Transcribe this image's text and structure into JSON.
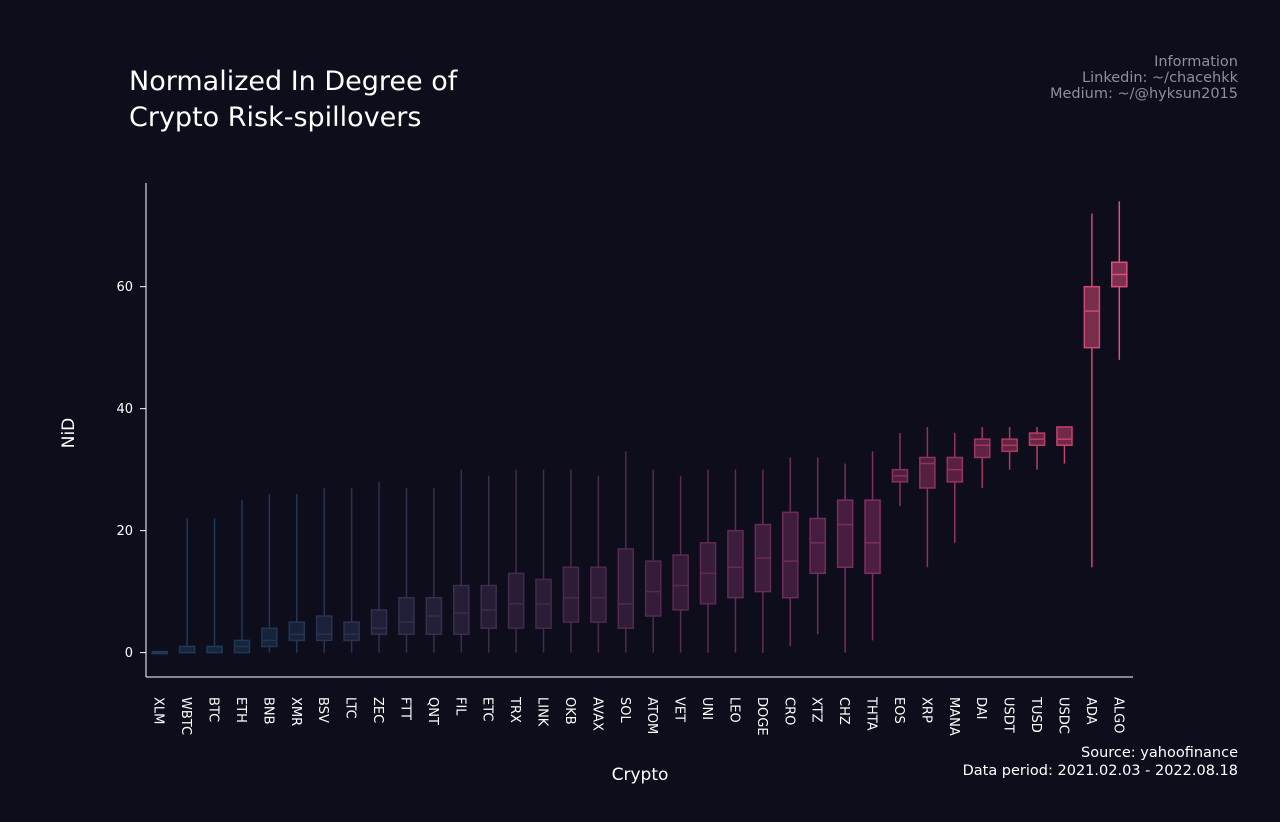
{
  "title_line1": "Normalized In Degree of",
  "title_line2": "Crypto Risk-spillovers",
  "info": {
    "heading": "Information",
    "linkedin": "Linkedin: ~/chacehkk",
    "medium": "Medium: ~/@hyksun2015"
  },
  "source": {
    "line1": "Source: yahoofinance",
    "line2": "Data period: 2021.02.03 - 2022.08.18"
  },
  "chart_data": {
    "type": "box",
    "xlabel": "Crypto",
    "ylabel": "NiD",
    "ylim": [
      -4,
      77
    ],
    "yticks": [
      0,
      20,
      40,
      60
    ],
    "legend": "none",
    "categories": [
      "XLM",
      "WBTC",
      "BTC",
      "ETH",
      "BNB",
      "XMR",
      "BSV",
      "LTC",
      "ZEC",
      "FTT",
      "QNT",
      "FIL",
      "ETC",
      "TRX",
      "LINK",
      "OKB",
      "AVAX",
      "SOL",
      "ATOM",
      "VET",
      "UNI",
      "LEO",
      "DOGE",
      "CRO",
      "XTZ",
      "CHZ",
      "THTA",
      "EOS",
      "XRP",
      "MANA",
      "DAI",
      "USDT",
      "TUSD",
      "USDC",
      "ADA",
      "ALGO"
    ],
    "boxes": [
      {
        "name": "XLM",
        "min": 0,
        "q1": 0,
        "median": 0,
        "q3": 0,
        "max": 0,
        "color": "#1d3a55"
      },
      {
        "name": "WBTC",
        "min": 0,
        "q1": 0,
        "median": 1,
        "q3": 1,
        "max": 22,
        "color": "#1d3a55"
      },
      {
        "name": "BTC",
        "min": 0,
        "q1": 0,
        "median": 1,
        "q3": 1,
        "max": 22,
        "color": "#1d3a55"
      },
      {
        "name": "ETH",
        "min": 0,
        "q1": 0,
        "median": 1,
        "q3": 2,
        "max": 25,
        "color": "#1e3853"
      },
      {
        "name": "BNB",
        "min": 0,
        "q1": 1,
        "median": 2,
        "q3": 4,
        "max": 26,
        "color": "#213652"
      },
      {
        "name": "XMR",
        "min": 0,
        "q1": 2,
        "median": 3,
        "q3": 5,
        "max": 26,
        "color": "#253552"
      },
      {
        "name": "BSV",
        "min": 0,
        "q1": 2,
        "median": 3,
        "q3": 6,
        "max": 27,
        "color": "#283351"
      },
      {
        "name": "LTC",
        "min": 0,
        "q1": 2,
        "median": 3,
        "q3": 5,
        "max": 27,
        "color": "#2c3250"
      },
      {
        "name": "ZEC",
        "min": 0,
        "q1": 3,
        "median": 4,
        "q3": 7,
        "max": 28,
        "color": "#2f314f"
      },
      {
        "name": "FTT",
        "min": 0,
        "q1": 3,
        "median": 5,
        "q3": 9,
        "max": 27,
        "color": "#33304e"
      },
      {
        "name": "QNT",
        "min": 0,
        "q1": 3,
        "median": 6,
        "q3": 9,
        "max": 27,
        "color": "#372f4d"
      },
      {
        "name": "FIL",
        "min": 0,
        "q1": 3,
        "median": 6.5,
        "q3": 11,
        "max": 30,
        "color": "#3a2e4c"
      },
      {
        "name": "ETC",
        "min": 0,
        "q1": 4,
        "median": 7,
        "q3": 11,
        "max": 29,
        "color": "#3e2d4b"
      },
      {
        "name": "TRX",
        "min": 0,
        "q1": 4,
        "median": 8,
        "q3": 13,
        "max": 30,
        "color": "#412c4b"
      },
      {
        "name": "LINK",
        "min": 0,
        "q1": 4,
        "median": 8,
        "q3": 12,
        "max": 30,
        "color": "#452b4b"
      },
      {
        "name": "OKB",
        "min": 0,
        "q1": 5,
        "median": 9,
        "q3": 14,
        "max": 30,
        "color": "#492a4c"
      },
      {
        "name": "AVAX",
        "min": 0,
        "q1": 5,
        "median": 9,
        "q3": 14,
        "max": 29,
        "color": "#4d2a4d"
      },
      {
        "name": "SOL",
        "min": 0,
        "q1": 4,
        "median": 8,
        "q3": 17,
        "max": 33,
        "color": "#512a4e"
      },
      {
        "name": "ATOM",
        "min": 0,
        "q1": 6,
        "median": 10,
        "q3": 15,
        "max": 30,
        "color": "#562a50"
      },
      {
        "name": "VET",
        "min": 0,
        "q1": 7,
        "median": 11,
        "q3": 16,
        "max": 29,
        "color": "#5a2a51"
      },
      {
        "name": "UNI",
        "min": 0,
        "q1": 8,
        "median": 13,
        "q3": 18,
        "max": 30,
        "color": "#5f2a53"
      },
      {
        "name": "LEO",
        "min": 0,
        "q1": 9,
        "median": 14,
        "q3": 20,
        "max": 30,
        "color": "#642b55"
      },
      {
        "name": "DOGE",
        "min": 0,
        "q1": 10,
        "median": 15.5,
        "q3": 21,
        "max": 30,
        "color": "#692b57"
      },
      {
        "name": "CRO",
        "min": 1,
        "q1": 9,
        "median": 15,
        "q3": 23,
        "max": 32,
        "color": "#6e2c59"
      },
      {
        "name": "XTZ",
        "min": 3,
        "q1": 13,
        "median": 18,
        "q3": 22,
        "max": 32,
        "color": "#742d5c"
      },
      {
        "name": "CHZ",
        "min": 0,
        "q1": 14,
        "median": 21,
        "q3": 25,
        "max": 31,
        "color": "#7a2e5f"
      },
      {
        "name": "THTA",
        "min": 2,
        "q1": 13,
        "median": 18,
        "q3": 25,
        "max": 33,
        "color": "#812f62"
      },
      {
        "name": "EOS",
        "min": 24,
        "q1": 28,
        "median": 29,
        "q3": 30,
        "max": 36,
        "color": "#88305f"
      },
      {
        "name": "XRP",
        "min": 14,
        "q1": 27,
        "median": 31,
        "q3": 32,
        "max": 37,
        "color": "#90325f"
      },
      {
        "name": "MANA",
        "min": 18,
        "q1": 28,
        "median": 30,
        "q3": 32,
        "max": 36,
        "color": "#98335f"
      },
      {
        "name": "DAI",
        "min": 27,
        "q1": 32,
        "median": 34,
        "q3": 35,
        "max": 37,
        "color": "#a2365f"
      },
      {
        "name": "USDT",
        "min": 30,
        "q1": 33,
        "median": 34,
        "q3": 35,
        "max": 37,
        "color": "#ad3a63"
      },
      {
        "name": "TUSD",
        "min": 30,
        "q1": 34,
        "median": 35,
        "q3": 36,
        "max": 37,
        "color": "#b83e67"
      },
      {
        "name": "USDC",
        "min": 31,
        "q1": 34,
        "median": 35,
        "q3": 37,
        "max": 37,
        "color": "#c4426c"
      },
      {
        "name": "ADA",
        "min": 14,
        "q1": 50,
        "median": 56,
        "q3": 60,
        "max": 72,
        "color": "#d14873"
      },
      {
        "name": "ALGO",
        "min": 48,
        "q1": 60,
        "median": 62,
        "q3": 64,
        "max": 74,
        "color": "#de4f7b"
      }
    ]
  }
}
